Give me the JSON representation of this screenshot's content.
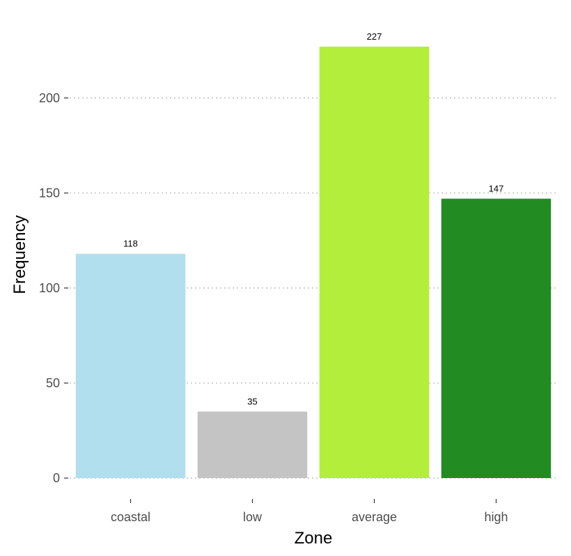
{
  "chart_data": {
    "type": "bar",
    "title": "",
    "xlabel": "Zone",
    "ylabel": "Frequency",
    "categories": [
      "coastal",
      "low",
      "average",
      "high"
    ],
    "values": [
      118,
      35,
      227,
      147
    ],
    "colors": [
      "#b2dfee",
      "#c4c4c4",
      "#b3ee3a",
      "#228b22"
    ],
    "ylim": [
      0,
      238
    ],
    "yticks": [
      0,
      50,
      100,
      150,
      200
    ],
    "grid": "horizontal dotted",
    "legend": "none"
  }
}
